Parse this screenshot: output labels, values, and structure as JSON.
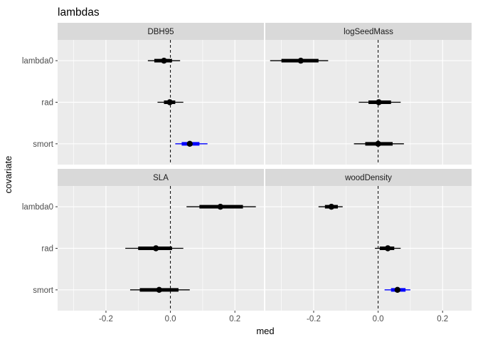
{
  "chart_data": {
    "type": "forest-interval",
    "title": "lambdas",
    "xlabel": "med",
    "ylabel": "covariate",
    "xlim": [
      -0.35,
      0.29
    ],
    "x_ticks": [
      -0.2,
      0.0,
      0.2
    ],
    "x_tick_labels": [
      "-0.2",
      "0.0",
      "0.2"
    ],
    "reference_line": 0,
    "categories": [
      "lambda0",
      "rad",
      "smort"
    ],
    "colors": {
      "panel_bg": "#ebebeb",
      "grid": "#ffffff",
      "strip_bg": "#d9d9d9",
      "not_significant": "#000000",
      "significant": "#0000ff",
      "zero_cross_gap": "#ffffff"
    },
    "panels": [
      {
        "name": "DBH95",
        "rows": [
          {
            "covariate": "lambda0",
            "med": -0.02,
            "inner": [
              -0.05,
              0.005
            ],
            "outer": [
              -0.07,
              0.03
            ],
            "significant": false
          },
          {
            "covariate": "rad",
            "med": -0.002,
            "inner": [
              -0.02,
              0.015
            ],
            "outer": [
              -0.04,
              0.04
            ],
            "significant": false
          },
          {
            "covariate": "smort",
            "med": 0.06,
            "inner": [
              0.035,
              0.09
            ],
            "outer": [
              0.015,
              0.115
            ],
            "significant": true
          }
        ]
      },
      {
        "name": "logSeedMass",
        "rows": [
          {
            "covariate": "lambda0",
            "med": -0.24,
            "inner": [
              -0.3,
              -0.185
            ],
            "outer": [
              -0.335,
              -0.155
            ],
            "significant": false
          },
          {
            "covariate": "rad",
            "med": 0.002,
            "inner": [
              -0.03,
              0.04
            ],
            "outer": [
              -0.06,
              0.07
            ],
            "significant": false
          },
          {
            "covariate": "smort",
            "med": 0.0,
            "inner": [
              -0.04,
              0.045
            ],
            "outer": [
              -0.075,
              0.08
            ],
            "significant": false
          }
        ]
      },
      {
        "name": "SLA",
        "rows": [
          {
            "covariate": "lambda0",
            "med": 0.155,
            "inner": [
              0.09,
              0.225
            ],
            "outer": [
              0.05,
              0.265
            ],
            "significant": false
          },
          {
            "covariate": "rad",
            "med": -0.045,
            "inner": [
              -0.1,
              0.005
            ],
            "outer": [
              -0.14,
              0.04
            ],
            "significant": false
          },
          {
            "covariate": "smort",
            "med": -0.035,
            "inner": [
              -0.095,
              0.025
            ],
            "outer": [
              -0.125,
              0.06
            ],
            "significant": false
          }
        ]
      },
      {
        "name": "woodDensity",
        "rows": [
          {
            "covariate": "lambda0",
            "med": -0.145,
            "inner": [
              -0.165,
              -0.125
            ],
            "outer": [
              -0.185,
              -0.11
            ],
            "significant": false
          },
          {
            "covariate": "rad",
            "med": 0.03,
            "inner": [
              0.005,
              0.05
            ],
            "outer": [
              -0.01,
              0.07
            ],
            "significant": false
          },
          {
            "covariate": "smort",
            "med": 0.06,
            "inner": [
              0.04,
              0.085
            ],
            "outer": [
              0.02,
              0.1
            ],
            "significant": true
          }
        ]
      }
    ]
  }
}
